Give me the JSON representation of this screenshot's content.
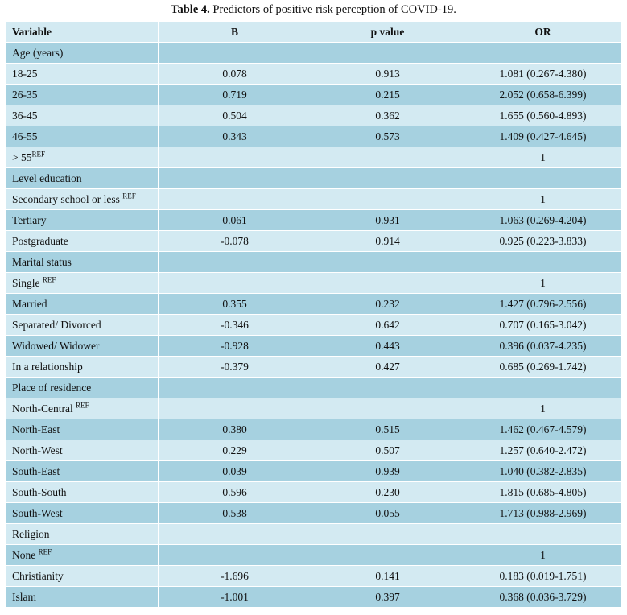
{
  "caption": {
    "label": "Table 4.",
    "text": "Predictors of positive risk perception of COVID-19."
  },
  "headers": [
    "Variable",
    "B",
    "p value",
    "OR"
  ],
  "rows": [
    {
      "variable": "Age (years)",
      "sup": "",
      "b": "",
      "p": "",
      "or": ""
    },
    {
      "variable": "18-25",
      "sup": "",
      "b": "0.078",
      "p": "0.913",
      "or": "1.081 (0.267-4.380)"
    },
    {
      "variable": "26-35",
      "sup": "",
      "b": "0.719",
      "p": "0.215",
      "or": "2.052 (0.658-6.399)"
    },
    {
      "variable": "36-45",
      "sup": "",
      "b": "0.504",
      "p": "0.362",
      "or": "1.655 (0.560-4.893)"
    },
    {
      "variable": "46-55",
      "sup": "",
      "b": "0.343",
      "p": "0.573",
      "or": "1.409 (0.427-4.645)"
    },
    {
      "variable": "> 55",
      "sup": "REF",
      "b": "",
      "p": "",
      "or": "1"
    },
    {
      "variable": "Level education",
      "sup": "",
      "b": "",
      "p": "",
      "or": ""
    },
    {
      "variable": "Secondary school or less ",
      "sup": "REF",
      "b": "",
      "p": "",
      "or": "1"
    },
    {
      "variable": "Tertiary",
      "sup": "",
      "b": "0.061",
      "p": "0.931",
      "or": "1.063 (0.269-4.204)"
    },
    {
      "variable": "Postgraduate",
      "sup": "",
      "b": "-0.078",
      "p": "0.914",
      "or": "0.925 (0.223-3.833)"
    },
    {
      "variable": "Marital status",
      "sup": "",
      "b": "",
      "p": "",
      "or": ""
    },
    {
      "variable": "Single ",
      "sup": "REF",
      "b": "",
      "p": "",
      "or": "1"
    },
    {
      "variable": "Married",
      "sup": "",
      "b": "0.355",
      "p": "0.232",
      "or": "1.427 (0.796-2.556)"
    },
    {
      "variable": "Separated/ Divorced",
      "sup": "",
      "b": "-0.346",
      "p": "0.642",
      "or": "0.707 (0.165-3.042)"
    },
    {
      "variable": "Widowed/ Widower",
      "sup": "",
      "b": "-0.928",
      "p": "0.443",
      "or": "0.396 (0.037-4.235)"
    },
    {
      "variable": "In a relationship",
      "sup": "",
      "b": "-0.379",
      "p": "0.427",
      "or": "0.685 (0.269-1.742)"
    },
    {
      "variable": "Place of residence",
      "sup": "",
      "b": "",
      "p": "",
      "or": ""
    },
    {
      "variable": "North-Central ",
      "sup": "REF",
      "b": "",
      "p": "",
      "or": "1"
    },
    {
      "variable": "North-East",
      "sup": "",
      "b": "0.380",
      "p": "0.515",
      "or": "1.462 (0.467-4.579)"
    },
    {
      "variable": "North-West",
      "sup": "",
      "b": "0.229",
      "p": "0.507",
      "or": "1.257 (0.640-2.472)"
    },
    {
      "variable": "South-East",
      "sup": "",
      "b": "0.039",
      "p": "0.939",
      "or": "1.040 (0.382-2.835)"
    },
    {
      "variable": "South-South",
      "sup": "",
      "b": "0.596",
      "p": "0.230",
      "or": "1.815 (0.685-4.805)"
    },
    {
      "variable": "South-West",
      "sup": "",
      "b": "0.538",
      "p": "0.055",
      "or": "1.713 (0.988-2.969)"
    },
    {
      "variable": "Religion",
      "sup": "",
      "b": "",
      "p": "",
      "or": ""
    },
    {
      "variable": "None ",
      "sup": "REF",
      "b": "",
      "p": "",
      "or": "1"
    },
    {
      "variable": "Christianity",
      "sup": "",
      "b": "-1.696",
      "p": "0.141",
      "or": "0.183 (0.019-1.751)"
    },
    {
      "variable": "Islam",
      "sup": "",
      "b": "-1.001",
      "p": "0.397",
      "or": "0.368 (0.036-3.729)"
    }
  ],
  "colors": {
    "row_dark": "#a6d1e0",
    "row_light": "#d3eaf2"
  }
}
